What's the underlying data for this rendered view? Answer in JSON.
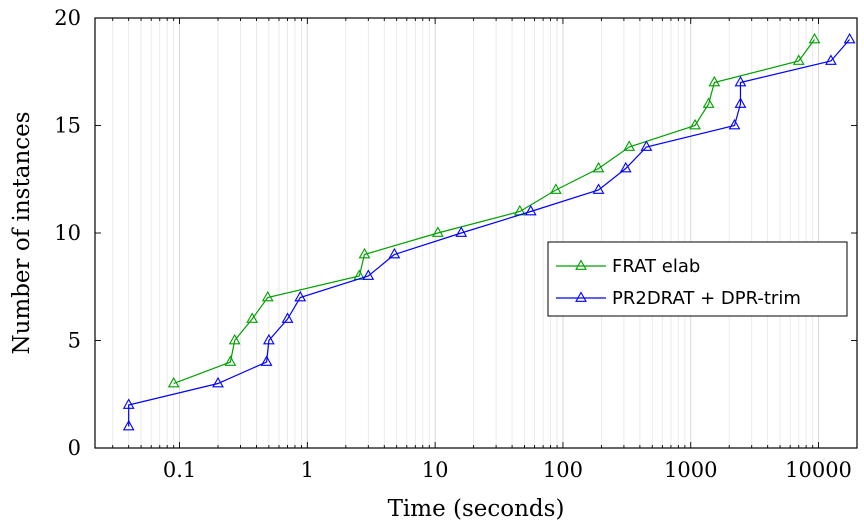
{
  "chart_data": {
    "type": "line",
    "xlabel": "Time (seconds)",
    "ylabel": "Number of instances",
    "xscale": "log",
    "xlim": [
      0.0218,
      20000
    ],
    "ylim": [
      0,
      20
    ],
    "x_ticks": [
      0.1,
      1,
      10,
      100,
      1000,
      10000
    ],
    "x_tick_labels": [
      "0.1",
      "1",
      "10",
      "100",
      "1000",
      "10000"
    ],
    "y_ticks": [
      0,
      5,
      10,
      15,
      20
    ],
    "y_tick_labels": [
      "0",
      "5",
      "10",
      "15",
      "20"
    ],
    "grid": "x-major-and-minor",
    "legend_position": "center-right",
    "series": [
      {
        "name": "FRAT elab",
        "color": "#00a000",
        "marker": "triangle",
        "points": [
          [
            0.09,
            3
          ],
          [
            0.25,
            4
          ],
          [
            0.27,
            5
          ],
          [
            0.37,
            6
          ],
          [
            0.49,
            7
          ],
          [
            2.55,
            8
          ],
          [
            2.8,
            9
          ],
          [
            10.5,
            10
          ],
          [
            46,
            11
          ],
          [
            88,
            12
          ],
          [
            190,
            13
          ],
          [
            330,
            14
          ],
          [
            1080,
            15
          ],
          [
            1380,
            16
          ],
          [
            1530,
            17
          ],
          [
            7000,
            18
          ],
          [
            9300,
            19
          ]
        ]
      },
      {
        "name": "PR2DRAT + DPR-trim",
        "color": "#0000ff",
        "marker": "triangle",
        "points": [
          [
            0.04,
            1
          ],
          [
            0.04,
            2
          ],
          [
            0.2,
            3
          ],
          [
            0.48,
            4
          ],
          [
            0.5,
            5
          ],
          [
            0.7,
            6
          ],
          [
            0.88,
            7
          ],
          [
            3.0,
            8
          ],
          [
            4.8,
            9
          ],
          [
            16,
            10
          ],
          [
            56,
            11
          ],
          [
            190,
            12
          ],
          [
            310,
            13
          ],
          [
            450,
            14
          ],
          [
            2200,
            15
          ],
          [
            2450,
            16
          ],
          [
            2450,
            17
          ],
          [
            12500,
            18
          ],
          [
            17500,
            19
          ]
        ]
      }
    ]
  }
}
